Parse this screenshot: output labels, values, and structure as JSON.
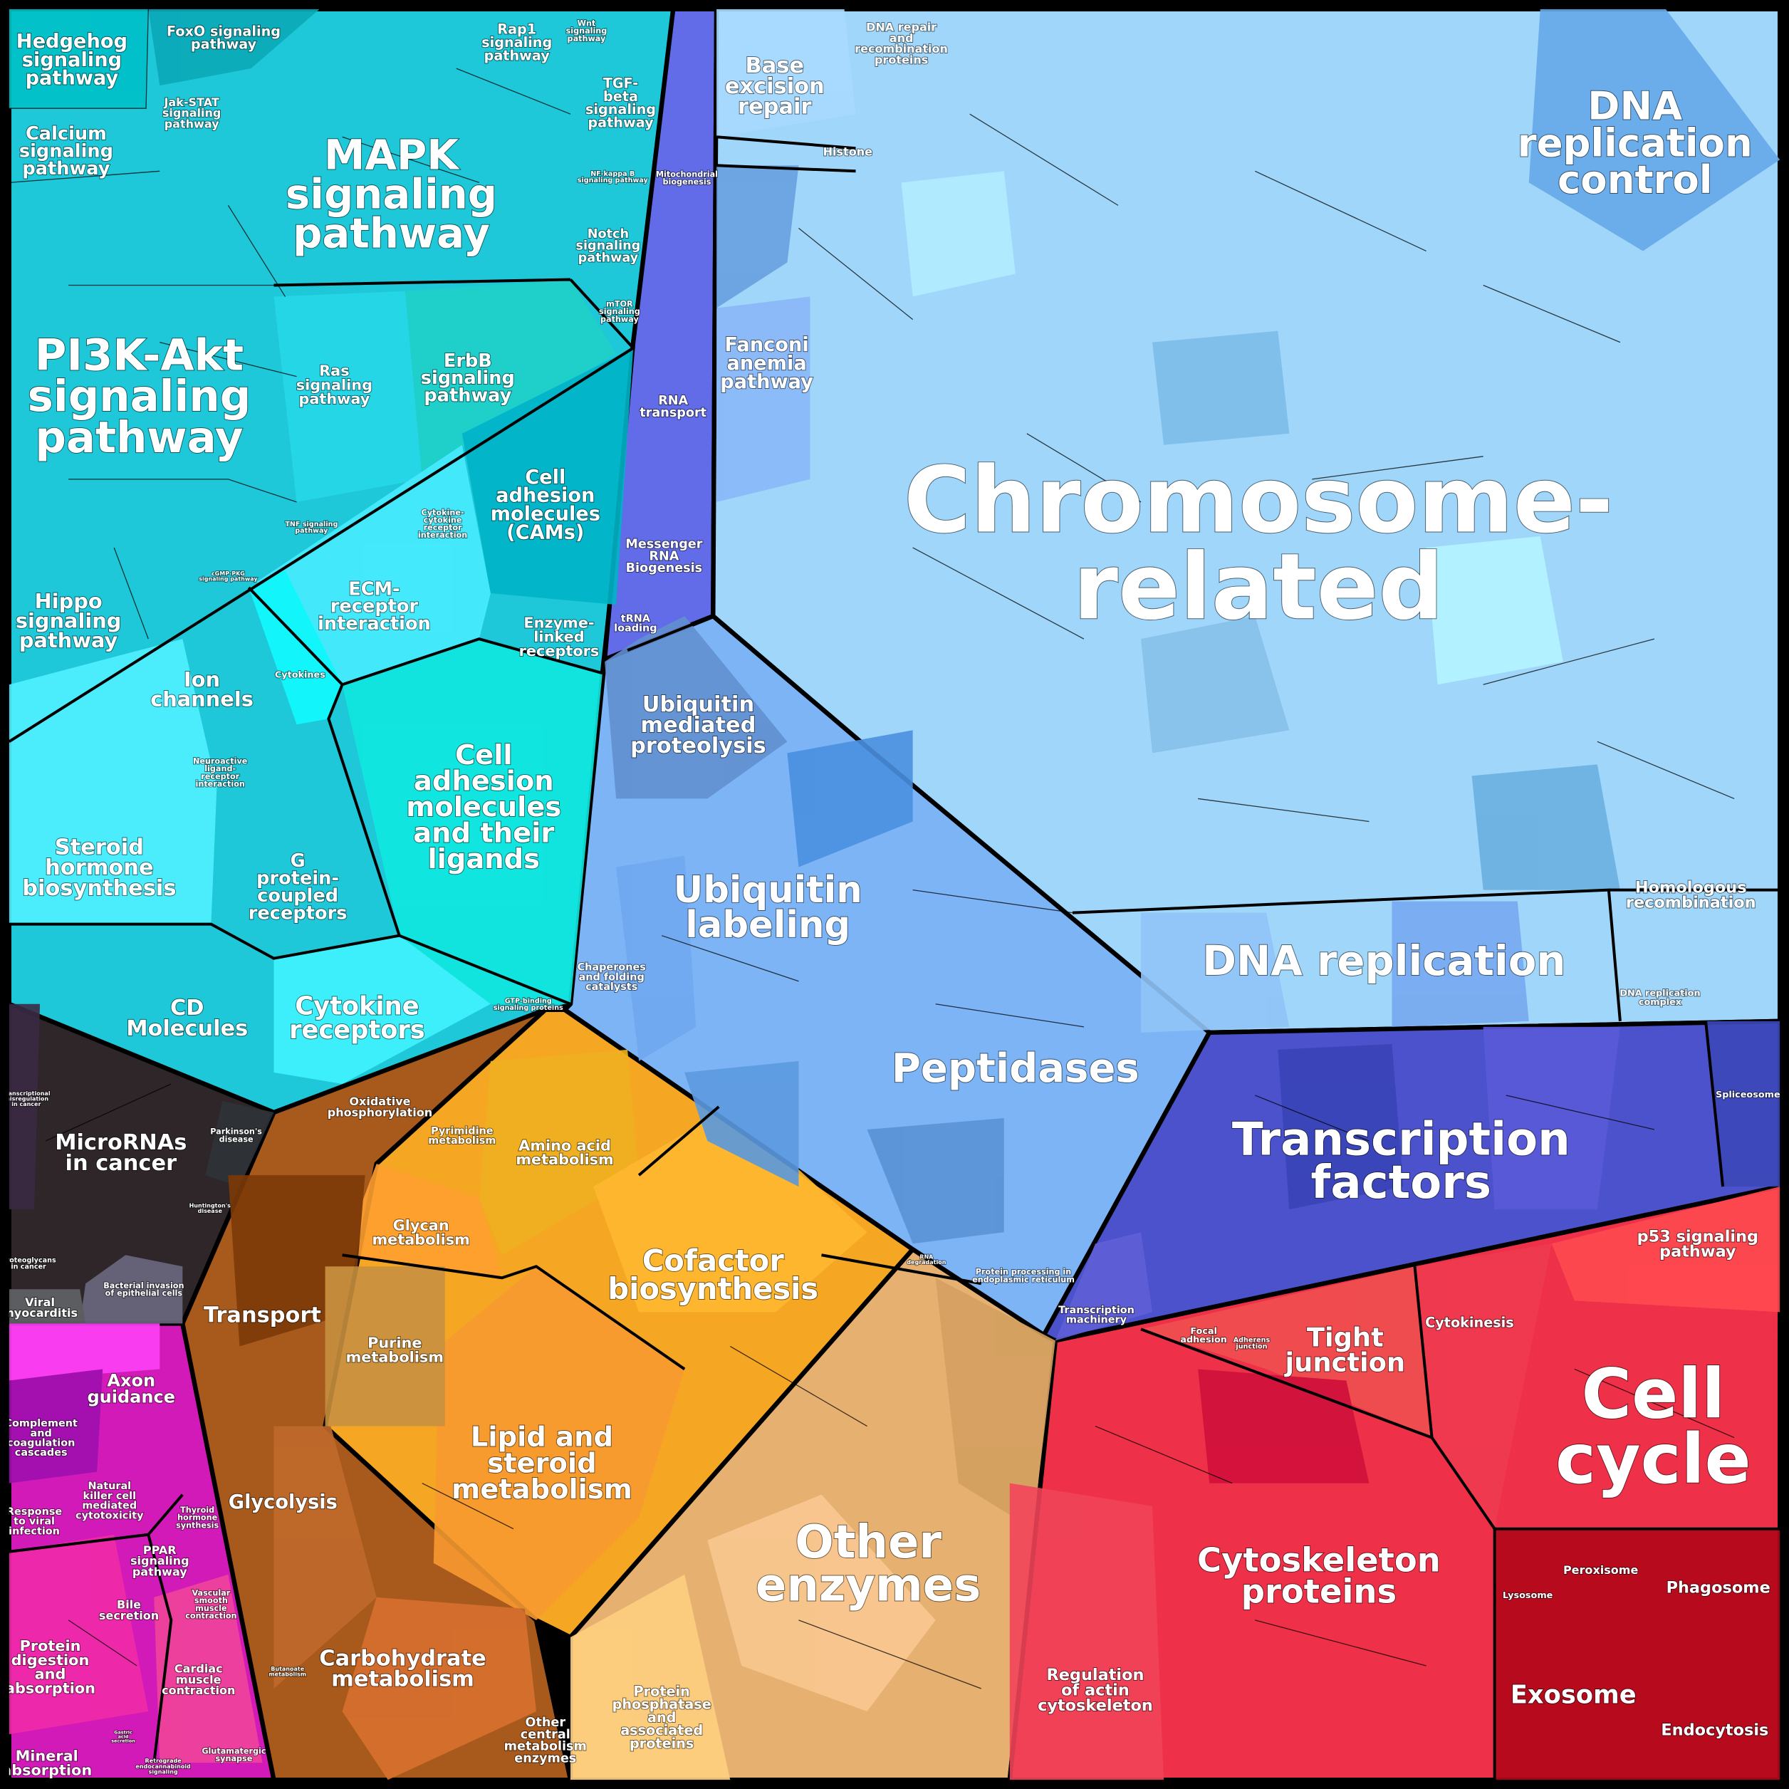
{
  "colors": {
    "signaling": "#1ec8d8",
    "cancer": "#2e2628",
    "organismal": "#d21ab8",
    "energy_metabolism": "#a85a1c",
    "metabolism": "#f5a623",
    "other_enzymes": "#e6b070",
    "genetic_info_strip": "#626ce8",
    "chromosome": "#9fd6fa",
    "protein_processing": "#7db4f6",
    "transcription": "#4b52cc",
    "cellular_processes": "#ee3048"
  },
  "labels": {
    "hedgehog": "Hedgehog\nsignaling\npathway",
    "foxo": "FoxO signaling\npathway",
    "rap1": "Rap1\nsignaling\npathway",
    "wnt": "Wnt\nsignaling\npathway",
    "tgfb": "TGF-\nbeta\nsignaling\npathway",
    "jakstat": "Jak-STAT\nsignaling\npathway",
    "calcium": "Calcium\nsignaling\npathway",
    "mapk": "MAPK\nsignaling\npathway",
    "nfkb": "NF-kappa B\nsignaling pathway",
    "mito": "Mitochondrial\nbiogenesis",
    "notch": "Notch\nsignaling\npathway",
    "mtor": "mTOR\nsignaling\npathway",
    "pi3k": "PI3K-Akt\nsignaling\npathway",
    "ras": "Ras\nsignaling\npathway",
    "erbb": "ErbB\nsignaling\npathway",
    "rna_transport": "RNA\ntransport",
    "cams": "Cell\nadhesion\nmolecules\n(CAMs)",
    "cytokine_cytokine": "Cytokine-\ncytokine\nreceptor\ninteraction",
    "tnf": "TNF signaling\npathway",
    "cgmp": "cGMP-PKG\nsignaling pathway",
    "mrna": "Messenger\nRNA\nBiogenesis",
    "ecm": "ECM-\nreceptor\ninteraction",
    "hippo": "Hippo\nsignaling\npathway",
    "enzyme_linked": "Enzyme-\nlinked\nreceptors",
    "trna": "tRNA\nloading",
    "cytokines": "Cytokines",
    "ion": "Ion\nchannels",
    "neuroactive": "Neuroactive\nligand-\nreceptor\ninteraction",
    "cam_ligands": "Cell\nadhesion\nmolecules\nand their\nligands",
    "steroid": "Steroid\nhormone\nbiosynthesis",
    "gpcr": "G\nprotein-\ncoupled\nreceptors",
    "cd": "CD\nMolecules",
    "cytokine_receptors": "Cytokine\nreceptors",
    "gtp": "GTP-binding\nsignaling proteins",
    "transcriptional_misreg": "Transcriptional\nmisregulation\nin cancer",
    "micrornas": "MicroRNAs\nin cancer",
    "parkinsons": "Parkinson's\ndisease",
    "huntingtons": "Huntington's\ndisease",
    "proteoglycans": "Proteoglycans\nin cancer",
    "bacterial": "Bacterial invasion\nof epithelial cells",
    "viral_myo": "Viral\nmyocarditis",
    "axon": "Axon\nguidance",
    "complement": "Complement\nand\ncoagulation\ncascades",
    "nk": "Natural\nkiller cell\nmediated\ncytotoxicity",
    "response_viral": "Response\nto viral\ninfection",
    "thyroid": "Thyroid\nhormone\nsynthesis",
    "ppar": "PPAR\nsignaling\npathway",
    "bile": "Bile\nsecretion",
    "vascular": "Vascular\nsmooth\nmuscle\ncontraction",
    "protein_digestion": "Protein\ndigestion\nand\nabsorption",
    "cardiac": "Cardiac\nmuscle\ncontraction",
    "gastric": "Gastric\nacid\nsecretion",
    "mineral": "Mineral\nabsorption",
    "retrograde": "Retrograde\nendocannabinoid\nsignaling",
    "glutamatergic": "Glutamatergic\nsynapse",
    "oxphos": "Oxidative\nphosphorylation",
    "pyrimidine": "Pyrimidine\nmetabolism",
    "transport": "Transport",
    "glycan": "Glycan\nmetabolism",
    "purine": "Purine\nmetabolism",
    "glycolysis": "Glycolysis",
    "carbohydrate": "Carbohydrate\nmetabolism",
    "butanoate": "Butanoate\nmetabolism",
    "other_central": "Other\ncentral\nmetabolism\nenzymes",
    "amino_acid": "Amino acid\nmetabolism",
    "cofactor": "Cofactor\nbiosynthesis",
    "lipid": "Lipid and\nsteroid\nmetabolism",
    "other_enzymes": "Other\nenzymes",
    "phosphatase": "Protein\nphosphatase\nand\nassociated\nproteins",
    "base_excision": "Base\nexcision\nrepair",
    "dna_repair": "DNA repair\nand\nrecombination\nproteins",
    "histone": "Histone",
    "fanconi": "Fanconi\nanemia\npathway",
    "dna_rep_control": "DNA\nreplication\ncontrol",
    "chromosome": "Chromosome-\nrelated",
    "ubiquitin_proteolysis": "Ubiquitin\nmediated\nproteolysis",
    "ubiquitin_labeling": "Ubiquitin\nlabeling",
    "homologous": "Homologous\nrecombination",
    "dna_replication": "DNA replication",
    "chaperones": "Chaperones\nand folding\ncatalysts",
    "dna_rep_complex": "DNA replication\ncomplex",
    "peptidases": "Peptidases",
    "rna_degradation": "RNA\ndegradation",
    "er_processing": "Protein processing in\nendoplasmic reticulum",
    "transcription_factors": "Transcription\nfactors",
    "spliceosome": "Spliceosome",
    "transcription_machinery": "Transcription\nmachinery",
    "focal": "Focal\nadhesion",
    "adherens": "Adherens\njunction",
    "tight": "Tight\njunction",
    "cytokinesis": "Cytokinesis",
    "p53": "p53 signaling\npathway",
    "cell_cycle": "Cell\ncycle",
    "cytoskeleton": "Cytoskeleton\nproteins",
    "actin": "Regulation\nof actin\ncytoskeleton",
    "lysosome": "Lysosome",
    "peroxisome": "Peroxisome",
    "phagosome": "Phagosome",
    "exosome": "Exosome",
    "endocytosis": "Endocytosis"
  }
}
